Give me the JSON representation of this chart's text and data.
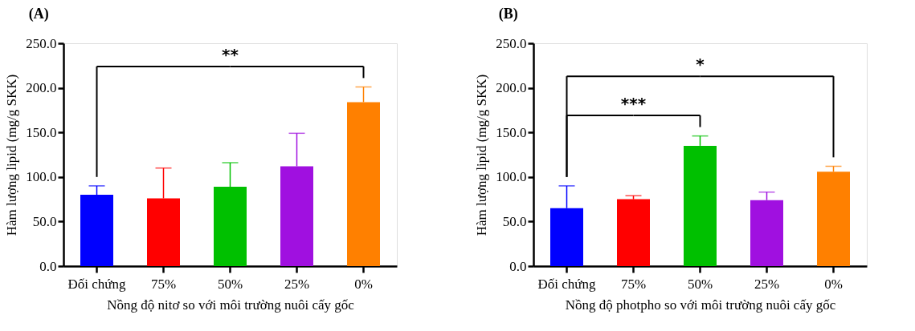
{
  "chart_data": [
    {
      "type": "bar",
      "title": "(A)",
      "xlabel": "Nồng độ nitơ so với môi trường nuôi cấy gốc",
      "ylabel": "Hàm lượng lipid (mg/g SKK)",
      "categories": [
        "Đối chứng",
        "75%",
        "50%",
        "25%",
        "0%"
      ],
      "values": [
        80,
        76,
        89,
        112,
        184
      ],
      "colors": [
        "#0000ff",
        "#ff0000",
        "#00c000",
        "#a010e0",
        "#ff8000"
      ],
      "errors": [
        [
          80,
          90
        ],
        [
          76,
          110
        ],
        [
          89,
          116
        ],
        [
          112,
          149
        ],
        [
          184,
          201
        ]
      ],
      "ylim": [
        0,
        250
      ],
      "yticks": [
        {
          "value": 0,
          "label": "0.0"
        },
        {
          "value": 50,
          "label": "50.0"
        },
        {
          "value": 100,
          "label": "100.0"
        },
        {
          "value": 150,
          "label": "150.0"
        },
        {
          "value": 200,
          "label": "200.0"
        },
        {
          "value": 250,
          "label": "250.0"
        }
      ],
      "annotations": [
        "**"
      ]
    },
    {
      "type": "bar",
      "title": "(B)",
      "xlabel": "Nồng độ photpho so với môi trường nuôi cấy gốc",
      "ylabel": "Hàm lượng lipid (mg/g SKK)",
      "categories": [
        "Đối chứng",
        "75%",
        "50%",
        "25%",
        "0%"
      ],
      "values": [
        65,
        75,
        135,
        74,
        106
      ],
      "colors": [
        "#0000ff",
        "#ff0000",
        "#00c000",
        "#a010e0",
        "#ff8000"
      ],
      "errors": [
        [
          65,
          90
        ],
        [
          75,
          79
        ],
        [
          135,
          146
        ],
        [
          74,
          83
        ],
        [
          106,
          112
        ]
      ],
      "ylim": [
        0,
        250
      ],
      "yticks": [
        {
          "value": 0,
          "label": "0.0"
        },
        {
          "value": 50,
          "label": "50.0"
        },
        {
          "value": 100,
          "label": "100.0"
        },
        {
          "value": 150,
          "label": "150.0"
        },
        {
          "value": 200,
          "label": "200.0"
        },
        {
          "value": 250,
          "label": "250.0"
        }
      ],
      "annotations": [
        "***",
        "*"
      ]
    }
  ]
}
